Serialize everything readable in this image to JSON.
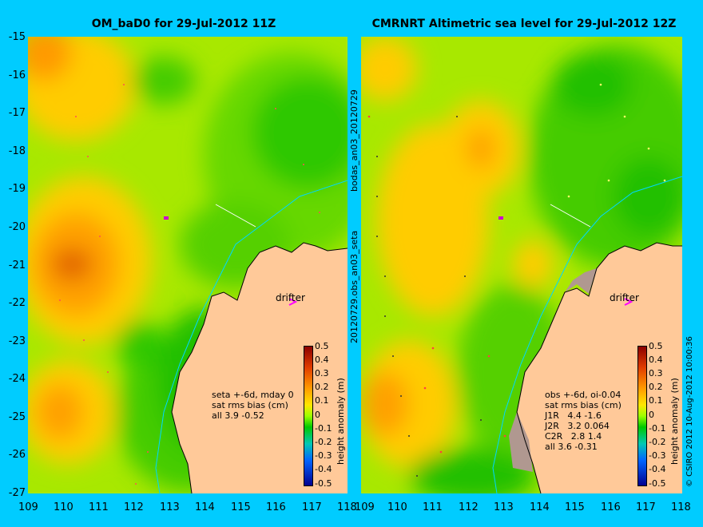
{
  "left_map": {
    "title": "OM_baD0 for 29-Jul-2012 11Z",
    "annotation": "drifter",
    "stats": [
      "seta +-6d, mday 0",
      "sat rms bias (cm)",
      "all 3.9 -0.52"
    ]
  },
  "right_map": {
    "title": "CMRNRT Altimetric sea level  for 29-Jul-2012 12Z",
    "annotation": "drifter",
    "stats": [
      "obs +-6d, oi-0.04",
      "sat rms bias (cm)",
      "J1R   4.4 -1.6",
      "J2R   3.2 0.064",
      "C2R   2.8 1.4",
      "all 3.6 -0.31"
    ]
  },
  "y_ticks": [
    "-15",
    "-16",
    "-17",
    "-18",
    "-19",
    "-20",
    "-21",
    "-22",
    "-23",
    "-24",
    "-25",
    "-26",
    "-27"
  ],
  "x_ticks_left": [
    "109",
    "110",
    "111",
    "112",
    "113",
    "114",
    "115",
    "116",
    "117",
    "118"
  ],
  "x_ticks_right": [
    "109",
    "110",
    "111",
    "112",
    "113",
    "114",
    "115",
    "116",
    "117",
    "118"
  ],
  "side_label_top": "bodas_an03_20120729",
  "side_label_bottom": "20120729.obs_an03_seta",
  "colorbar": {
    "ticks": [
      "0.5",
      "0.4",
      "0.3",
      "0.2",
      "0.1",
      "0",
      "-0.1",
      "-0.2",
      "-0.3",
      "-0.4",
      "-0.5"
    ],
    "title": "height anomaly (m)"
  },
  "credit": "© CSIRO 2012  10-Aug-2012 10:00:36"
}
